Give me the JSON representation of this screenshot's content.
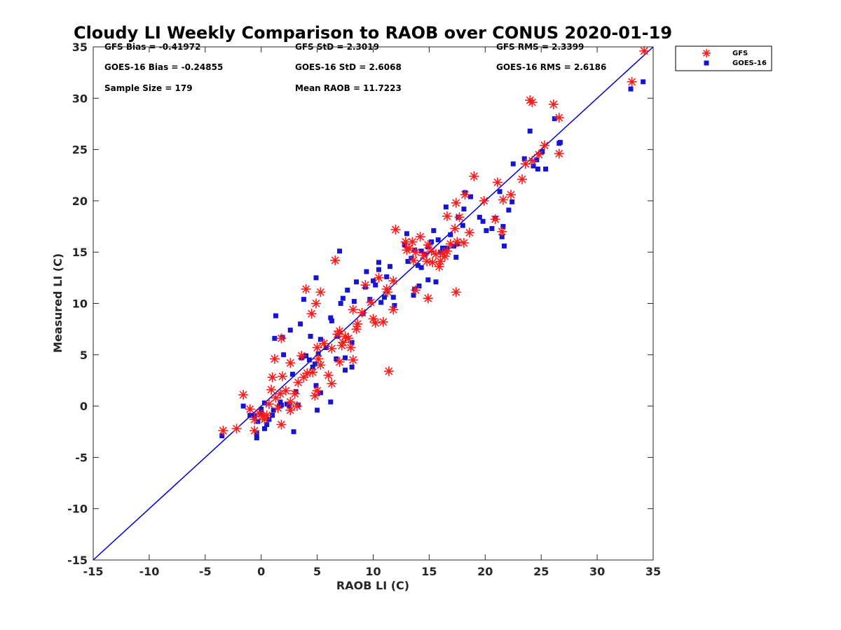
{
  "chart_data": {
    "type": "scatter",
    "title": "Cloudy LI Weekly Comparison to RAOB over CONUS 2020-01-19",
    "xlabel": "RAOB LI (C)",
    "ylabel": "Measured LI (C)",
    "xlim": [
      -15,
      35
    ],
    "ylim": [
      -15,
      35
    ],
    "xticks": [
      -15,
      -10,
      -5,
      0,
      5,
      10,
      15,
      20,
      25,
      30,
      35
    ],
    "yticks": [
      -15,
      -10,
      -5,
      0,
      5,
      10,
      15,
      20,
      25,
      30,
      35
    ],
    "grid": false,
    "legend_position": "outside-top-right",
    "stats": [
      [
        "GFS Bias = -0.41972",
        "GFS StD = 2.3019",
        "GFS RMS = 2.3399"
      ],
      [
        "GOES-16 Bias = -0.24855",
        "GOES-16 StD = 2.6068",
        "GOES-16 RMS = 2.6186"
      ],
      [
        "Sample Size = 179",
        "Mean RAOB = 11.7223",
        ""
      ]
    ],
    "reference_line": {
      "x": [
        -15,
        35
      ],
      "y": [
        -15,
        35
      ],
      "color": "#0000cc"
    },
    "series": [
      {
        "name": "GFS",
        "marker": "asterisk",
        "color": "#ff1a1a",
        "points": [
          [
            34.2,
            34.6
          ],
          [
            33.1,
            31.6
          ],
          [
            24.0,
            29.8
          ],
          [
            24.2,
            29.6
          ],
          [
            26.1,
            29.4
          ],
          [
            26.6,
            28.1
          ],
          [
            26.6,
            24.6
          ],
          [
            25.3,
            25.4
          ],
          [
            24.8,
            24.5
          ],
          [
            24.2,
            23.9
          ],
          [
            23.6,
            23.6
          ],
          [
            23.3,
            22.1
          ],
          [
            22.3,
            20.6
          ],
          [
            21.1,
            21.8
          ],
          [
            21.6,
            20.1
          ],
          [
            21.5,
            17.0
          ],
          [
            20.9,
            18.2
          ],
          [
            19.0,
            22.4
          ],
          [
            19.9,
            20.0
          ],
          [
            18.2,
            20.6
          ],
          [
            18.6,
            16.9
          ],
          [
            17.4,
            19.8
          ],
          [
            17.7,
            18.4
          ],
          [
            16.6,
            18.5
          ],
          [
            17.3,
            17.3
          ],
          [
            18.1,
            15.9
          ],
          [
            17.5,
            16.0
          ],
          [
            16.9,
            15.8
          ],
          [
            16.4,
            14.6
          ],
          [
            16.0,
            14.1
          ],
          [
            15.6,
            14.8
          ],
          [
            15.2,
            15.1
          ],
          [
            14.9,
            15.7
          ],
          [
            14.5,
            14.7
          ],
          [
            14.2,
            16.5
          ],
          [
            13.8,
            15.0
          ],
          [
            13.5,
            16.0
          ],
          [
            13.2,
            15.4
          ],
          [
            12.9,
            16.0
          ],
          [
            13.0,
            15.2
          ],
          [
            13.6,
            14.2
          ],
          [
            14.8,
            14.1
          ],
          [
            15.3,
            14.0
          ],
          [
            15.9,
            13.6
          ],
          [
            16.2,
            14.9
          ],
          [
            16.6,
            15.1
          ],
          [
            17.4,
            11.1
          ],
          [
            14.9,
            10.5
          ],
          [
            13.8,
            11.3
          ],
          [
            12.0,
            17.2
          ],
          [
            11.8,
            12.2
          ],
          [
            11.8,
            9.4
          ],
          [
            11.3,
            11.1
          ],
          [
            11.4,
            3.4
          ],
          [
            11.2,
            11.4
          ],
          [
            10.9,
            8.2
          ],
          [
            10.5,
            12.5
          ],
          [
            10.2,
            8.1
          ],
          [
            10.0,
            8.5
          ],
          [
            9.8,
            10.1
          ],
          [
            9.3,
            11.8
          ],
          [
            9.0,
            9.1
          ],
          [
            8.6,
            8.0
          ],
          [
            8.5,
            7.5
          ],
          [
            8.2,
            9.4
          ],
          [
            8.0,
            5.7
          ],
          [
            8.2,
            4.5
          ],
          [
            7.8,
            6.6
          ],
          [
            7.5,
            6.8
          ],
          [
            7.3,
            6.2
          ],
          [
            7.2,
            5.9
          ],
          [
            7.0,
            4.3
          ],
          [
            7.0,
            7.3
          ],
          [
            6.8,
            7.0
          ],
          [
            6.6,
            14.2
          ],
          [
            6.3,
            5.6
          ],
          [
            6.3,
            2.2
          ],
          [
            6.0,
            3.0
          ],
          [
            5.6,
            6.1
          ],
          [
            5.3,
            4.0
          ],
          [
            5.1,
            4.6
          ],
          [
            5.0,
            5.7
          ],
          [
            5.3,
            11.1
          ],
          [
            4.9,
            10.0
          ],
          [
            4.5,
            9.0
          ],
          [
            4.0,
            11.4
          ],
          [
            4.8,
            1.0
          ],
          [
            4.6,
            3.3
          ],
          [
            4.1,
            3.2
          ],
          [
            3.8,
            2.8
          ],
          [
            3.6,
            4.9
          ],
          [
            3.3,
            2.3
          ],
          [
            3.0,
            1.2
          ],
          [
            2.6,
            4.2
          ],
          [
            2.6,
            0.4
          ],
          [
            2.6,
            -0.4
          ],
          [
            2.2,
            1.5
          ],
          [
            1.9,
            2.9
          ],
          [
            1.8,
            6.6
          ],
          [
            1.7,
            1.2
          ],
          [
            1.5,
            -0.2
          ],
          [
            1.3,
            0.8
          ],
          [
            1.2,
            4.6
          ],
          [
            1.0,
            2.8
          ],
          [
            0.9,
            1.6
          ],
          [
            1.8,
            -1.8
          ],
          [
            0.7,
            0.2
          ],
          [
            0.5,
            -0.9
          ],
          [
            0.3,
            -1.3
          ],
          [
            0.1,
            -1.0
          ],
          [
            -0.2,
            -0.7
          ],
          [
            -0.6,
            -1.3
          ],
          [
            -0.6,
            -2.4
          ],
          [
            -1.0,
            -0.3
          ],
          [
            -1.6,
            1.1
          ],
          [
            -2.2,
            -2.2
          ],
          [
            -3.4,
            -2.4
          ],
          [
            3.2,
            0.0
          ],
          [
            5.0,
            1.5
          ]
        ]
      },
      {
        "name": "GOES-16",
        "marker": "square",
        "color": "#1414d2",
        "points": [
          [
            34.1,
            31.6
          ],
          [
            33.0,
            30.9
          ],
          [
            26.7,
            25.7
          ],
          [
            26.6,
            25.6
          ],
          [
            26.2,
            28.0
          ],
          [
            24.0,
            26.8
          ],
          [
            25.4,
            23.1
          ],
          [
            25.1,
            24.8
          ],
          [
            24.6,
            24.0
          ],
          [
            24.3,
            23.4
          ],
          [
            24.7,
            23.1
          ],
          [
            23.5,
            24.1
          ],
          [
            22.5,
            23.6
          ],
          [
            22.4,
            19.9
          ],
          [
            22.1,
            19.1
          ],
          [
            21.6,
            17.5
          ],
          [
            21.5,
            16.5
          ],
          [
            21.7,
            15.6
          ],
          [
            20.9,
            18.3
          ],
          [
            21.3,
            20.9
          ],
          [
            20.6,
            17.3
          ],
          [
            20.1,
            17.1
          ],
          [
            19.8,
            18.0
          ],
          [
            19.5,
            18.4
          ],
          [
            18.7,
            20.4
          ],
          [
            18.2,
            20.8
          ],
          [
            18.1,
            19.2
          ],
          [
            18.0,
            17.6
          ],
          [
            17.6,
            18.4
          ],
          [
            17.5,
            15.8
          ],
          [
            17.2,
            15.6
          ],
          [
            16.9,
            16.7
          ],
          [
            16.5,
            19.4
          ],
          [
            16.6,
            15.4
          ],
          [
            16.2,
            15.4
          ],
          [
            16.0,
            15.0
          ],
          [
            15.8,
            16.2
          ],
          [
            15.4,
            17.1
          ],
          [
            15.2,
            16.0
          ],
          [
            14.9,
            15.5
          ],
          [
            14.6,
            14.8
          ],
          [
            14.3,
            15.1
          ],
          [
            14.3,
            13.5
          ],
          [
            14.0,
            13.7
          ],
          [
            13.7,
            15.2
          ],
          [
            13.4,
            14.4
          ],
          [
            13.1,
            14.1
          ],
          [
            13.0,
            16.8
          ],
          [
            12.8,
            15.7
          ],
          [
            14.9,
            12.3
          ],
          [
            15.6,
            12.1
          ],
          [
            13.7,
            11.4
          ],
          [
            14.1,
            11.7
          ],
          [
            13.6,
            10.8
          ],
          [
            17.4,
            14.5
          ],
          [
            11.8,
            10.6
          ],
          [
            11.9,
            9.8
          ],
          [
            11.5,
            13.6
          ],
          [
            11.2,
            12.6
          ],
          [
            11.0,
            10.6
          ],
          [
            10.7,
            10.1
          ],
          [
            10.5,
            13.3
          ],
          [
            10.5,
            14.0
          ],
          [
            10.2,
            11.8
          ],
          [
            10.0,
            12.2
          ],
          [
            9.7,
            10.4
          ],
          [
            9.4,
            13.1
          ],
          [
            9.3,
            11.6
          ],
          [
            9.1,
            9.0
          ],
          [
            8.5,
            12.1
          ],
          [
            8.3,
            10.2
          ],
          [
            8.1,
            6.2
          ],
          [
            8.1,
            3.8
          ],
          [
            7.7,
            11.3
          ],
          [
            7.5,
            3.5
          ],
          [
            7.5,
            4.7
          ],
          [
            7.3,
            10.5
          ],
          [
            7.1,
            10.0
          ],
          [
            7.0,
            15.1
          ],
          [
            6.8,
            6.8
          ],
          [
            6.7,
            4.6
          ],
          [
            6.3,
            8.3
          ],
          [
            6.2,
            8.6
          ],
          [
            6.2,
            0.4
          ],
          [
            5.8,
            5.7
          ],
          [
            5.3,
            6.5
          ],
          [
            5.1,
            5.1
          ],
          [
            4.9,
            12.5
          ],
          [
            4.8,
            4.1
          ],
          [
            4.6,
            3.8
          ],
          [
            4.9,
            2.0
          ],
          [
            5.0,
            -0.4
          ],
          [
            5.3,
            1.3
          ],
          [
            4.4,
            6.8
          ],
          [
            4.3,
            4.5
          ],
          [
            4.0,
            4.9
          ],
          [
            3.8,
            10.4
          ],
          [
            3.6,
            4.7
          ],
          [
            3.5,
            8.0
          ],
          [
            3.1,
            1.4
          ],
          [
            2.8,
            3.1
          ],
          [
            2.6,
            7.4
          ],
          [
            2.9,
            -2.5
          ],
          [
            2.5,
            0.0
          ],
          [
            2.3,
            0.2
          ],
          [
            2.0,
            5.0
          ],
          [
            1.9,
            6.7
          ],
          [
            1.7,
            0.4
          ],
          [
            1.6,
            0.0
          ],
          [
            1.3,
            8.8
          ],
          [
            1.2,
            6.6
          ],
          [
            1.1,
            -0.4
          ],
          [
            1.0,
            -0.9
          ],
          [
            0.7,
            -1.3
          ],
          [
            0.5,
            -1.8
          ],
          [
            0.3,
            -2.2
          ],
          [
            0.3,
            0.3
          ],
          [
            0.0,
            -0.3
          ],
          [
            -0.3,
            -1.5
          ],
          [
            -0.4,
            -2.7
          ],
          [
            -0.4,
            -3.1
          ],
          [
            -0.6,
            -1.0
          ],
          [
            -1.0,
            -0.9
          ],
          [
            -1.6,
            0.0
          ],
          [
            -3.5,
            -2.9
          ],
          [
            1.8,
            0.1
          ],
          [
            3.3,
            0.1
          ],
          [
            0.0,
            -0.7
          ]
        ]
      }
    ]
  }
}
